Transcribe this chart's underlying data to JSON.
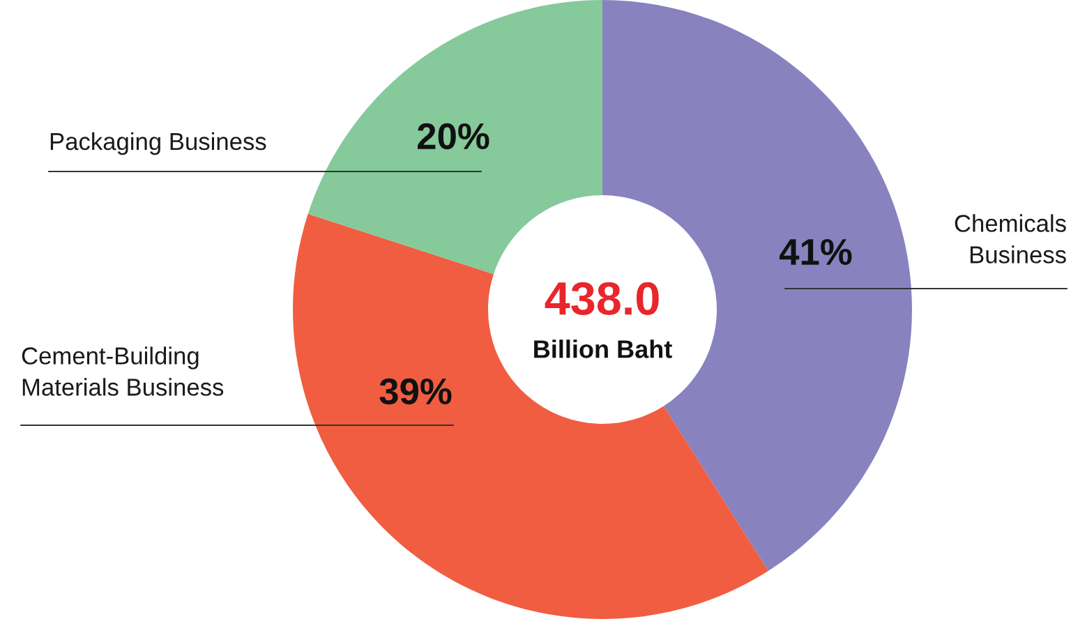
{
  "chart_data": {
    "type": "donut",
    "categories": [
      "Chemicals\nBusiness",
      "Cement-Building\nMaterials Business",
      "Packaging Business"
    ],
    "values": [
      41,
      39,
      20
    ],
    "colors": [
      "#8882bf",
      "#f15d40",
      "#86c99b"
    ],
    "value_labels": [
      "41%",
      "39%",
      "20%"
    ],
    "annotations": [
      "438.0",
      "Billion Baht"
    ],
    "legend": false
  }
}
